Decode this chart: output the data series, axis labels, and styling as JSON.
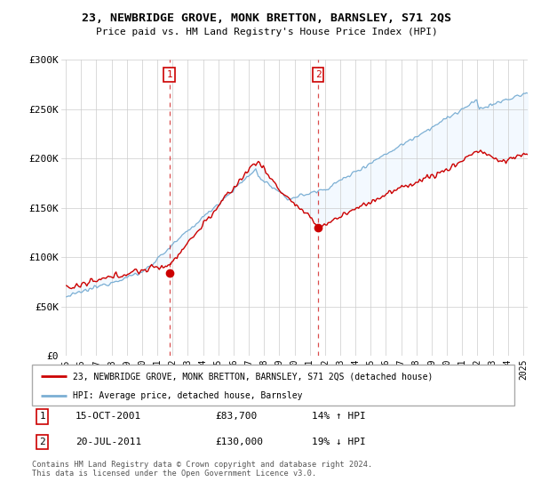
{
  "title": "23, NEWBRIDGE GROVE, MONK BRETTON, BARNSLEY, S71 2QS",
  "subtitle": "Price paid vs. HM Land Registry's House Price Index (HPI)",
  "legend_line1": "23, NEWBRIDGE GROVE, MONK BRETTON, BARNSLEY, S71 2QS (detached house)",
  "legend_line2": "HPI: Average price, detached house, Barnsley",
  "sale1_label": "1",
  "sale1_date": "15-OCT-2001",
  "sale1_price": "£83,700",
  "sale1_hpi": "14% ↑ HPI",
  "sale2_label": "2",
  "sale2_date": "20-JUL-2011",
  "sale2_price": "£130,000",
  "sale2_hpi": "19% ↓ HPI",
  "footer": "Contains HM Land Registry data © Crown copyright and database right 2024.\nThis data is licensed under the Open Government Licence v3.0.",
  "red_color": "#cc0000",
  "blue_color": "#7bafd4",
  "fill_color": "#ddeeff",
  "sale1_x": 2001.79,
  "sale1_y": 83700,
  "sale2_x": 2011.55,
  "sale2_y": 130000,
  "ylim": [
    0,
    300000
  ],
  "xlim": [
    1994.7,
    2025.3
  ],
  "yticks": [
    0,
    50000,
    100000,
    150000,
    200000,
    250000,
    300000
  ],
  "ytick_labels": [
    "£0",
    "£50K",
    "£100K",
    "£150K",
    "£200K",
    "£250K",
    "£300K"
  ],
  "xticks": [
    1995,
    1996,
    1997,
    1998,
    1999,
    2000,
    2001,
    2002,
    2003,
    2004,
    2005,
    2006,
    2007,
    2008,
    2009,
    2010,
    2011,
    2012,
    2013,
    2014,
    2015,
    2016,
    2017,
    2018,
    2019,
    2020,
    2021,
    2022,
    2023,
    2024,
    2025
  ]
}
